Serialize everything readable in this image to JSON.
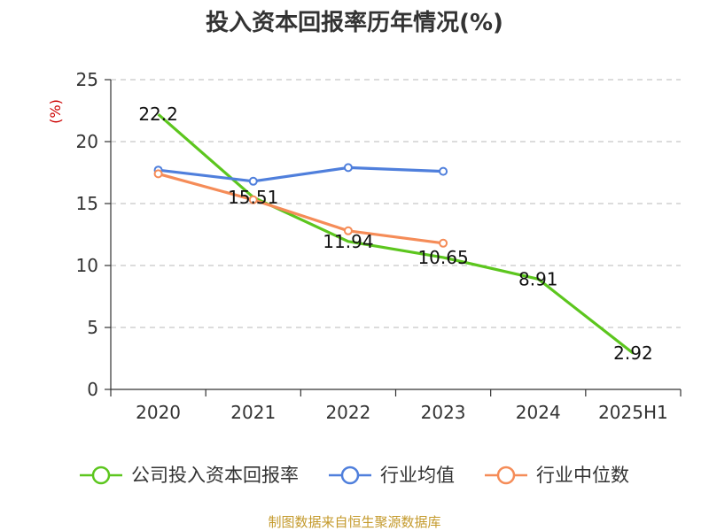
{
  "chart_data": {
    "type": "line",
    "title": "投入资本回报率历年情况(%)",
    "ylabel": "(%)",
    "xlabel": "",
    "categories": [
      "2020",
      "2021",
      "2022",
      "2023",
      "2024",
      "2025H1"
    ],
    "ylim": [
      0,
      25
    ],
    "yticks": [
      0,
      5,
      10,
      15,
      20,
      25
    ],
    "grid": true,
    "legend_position": "bottom",
    "series": [
      {
        "name": "公司投入资本回报率",
        "color": "#5cc61e",
        "values": [
          22.2,
          15.51,
          11.94,
          10.65,
          8.91,
          2.92
        ],
        "labels": [
          "22.2",
          "15.51",
          "11.94",
          "10.65",
          "8.91",
          "2.92"
        ],
        "show_markers": false
      },
      {
        "name": "行业均值",
        "color": "#4f7fdc",
        "values": [
          17.7,
          16.8,
          17.9,
          17.6,
          null,
          null
        ],
        "show_markers": true
      },
      {
        "name": "行业中位数",
        "color": "#f58c58",
        "values": [
          17.4,
          15.3,
          12.8,
          11.8,
          null,
          null
        ],
        "show_markers": true
      }
    ]
  },
  "footer": {
    "source": "制图数据来自恒生聚源数据库"
  }
}
